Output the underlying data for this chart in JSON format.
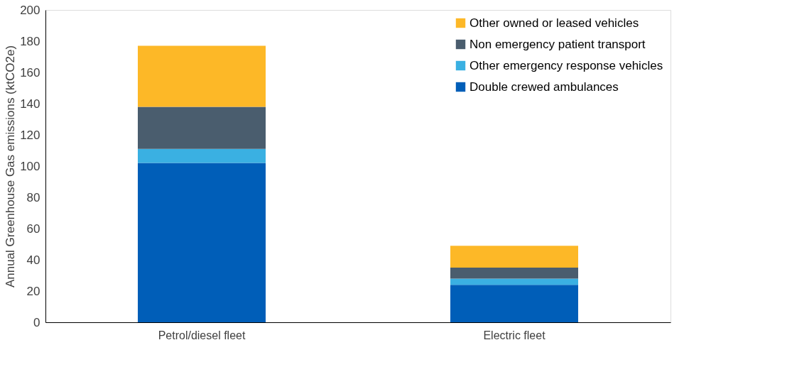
{
  "chart_data": {
    "type": "bar",
    "stacked": true,
    "categories": [
      "Petrol/diesel fleet",
      "Electric fleet"
    ],
    "ylabel": "Annual Greenhouse Gas emissions (ktCO2e)",
    "ylim": [
      0,
      200
    ],
    "yticks": [
      0,
      20,
      40,
      60,
      80,
      100,
      120,
      140,
      160,
      180,
      200
    ],
    "grid": false,
    "legend": "top right",
    "series": [
      {
        "name": "Double crewed ambulances",
        "color": "#005eb8",
        "values": [
          102,
          24
        ]
      },
      {
        "name": "Other emergency response vehicles",
        "color": "#3ab0e2",
        "values": [
          9,
          4
        ]
      },
      {
        "name": "Non emergency patient transport",
        "color": "#4a5d6e",
        "values": [
          27,
          7
        ]
      },
      {
        "name": "Other owned or leased vehicles",
        "color": "#fdb827",
        "values": [
          39,
          14
        ]
      }
    ]
  }
}
